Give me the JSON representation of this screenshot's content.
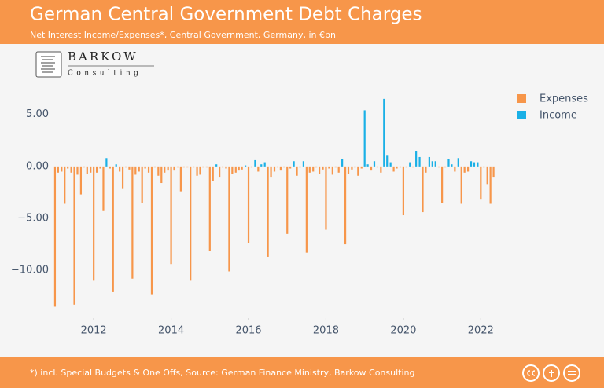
{
  "chart_data": {
    "type": "bar",
    "title": "German Central Government Debt Charges",
    "subtitle": "Net Interest Income/Expenses*, Central Government, Germany, in €bn",
    "logo": {
      "name": "BARKOW",
      "tagline": "Consulting"
    },
    "source": "*) incl. Special Budgets & One Offs, Source: German Finance Ministry, Barkow Consulting",
    "x": [
      2011.0,
      2011.08,
      2011.17,
      2011.25,
      2011.33,
      2011.42,
      2011.5,
      2011.58,
      2011.67,
      2011.75,
      2011.83,
      2011.92,
      2012.0,
      2012.08,
      2012.17,
      2012.25,
      2012.33,
      2012.42,
      2012.5,
      2012.58,
      2012.67,
      2012.75,
      2012.83,
      2012.92,
      2013.0,
      2013.08,
      2013.17,
      2013.25,
      2013.33,
      2013.42,
      2013.5,
      2013.58,
      2013.67,
      2013.75,
      2013.83,
      2013.92,
      2014.0,
      2014.08,
      2014.17,
      2014.25,
      2014.33,
      2014.42,
      2014.5,
      2014.58,
      2014.67,
      2014.75,
      2014.83,
      2014.92,
      2015.0,
      2015.08,
      2015.17,
      2015.25,
      2015.33,
      2015.42,
      2015.5,
      2015.58,
      2015.67,
      2015.75,
      2015.83,
      2015.92,
      2016.0,
      2016.08,
      2016.17,
      2016.25,
      2016.33,
      2016.42,
      2016.5,
      2016.58,
      2016.67,
      2016.75,
      2016.83,
      2016.92,
      2017.0,
      2017.08,
      2017.17,
      2017.25,
      2017.33,
      2017.42,
      2017.5,
      2017.58,
      2017.67,
      2017.75,
      2017.83,
      2017.92,
      2018.0,
      2018.08,
      2018.17,
      2018.25,
      2018.33,
      2018.42,
      2018.5,
      2018.58,
      2018.67,
      2018.75,
      2018.83,
      2018.92,
      2019.0,
      2019.08,
      2019.17,
      2019.25,
      2019.33,
      2019.42,
      2019.5,
      2019.58,
      2019.67,
      2019.75,
      2019.83,
      2019.92,
      2020.0,
      2020.08,
      2020.17,
      2020.25,
      2020.33,
      2020.42,
      2020.5,
      2020.58,
      2020.67,
      2020.75,
      2020.83,
      2020.92,
      2021.0,
      2021.08,
      2021.17,
      2021.25,
      2021.33,
      2021.42,
      2021.5,
      2021.58,
      2021.67,
      2021.75,
      2021.83,
      2021.92,
      2022.0,
      2022.08,
      2022.17,
      2022.25,
      2022.33
    ],
    "series": [
      {
        "name": "Expenses",
        "color": "#f7964a",
        "values": [
          -13.5,
          -0.6,
          -0.5,
          -3.6,
          -0.2,
          -0.6,
          -13.3,
          -0.8,
          -2.7,
          -0.1,
          -0.7,
          -0.6,
          -11.0,
          -0.6,
          -0.2,
          -4.3,
          null,
          -0.2,
          -12.1,
          null,
          -0.5,
          -2.1,
          -0.1,
          -0.3,
          -10.8,
          -0.8,
          -0.5,
          -3.5,
          -0.2,
          -0.6,
          -12.3,
          -0.1,
          -0.9,
          -1.6,
          -0.6,
          -0.4,
          -9.4,
          -0.4,
          -0.1,
          -2.4,
          -0.1,
          -0.1,
          -11.0,
          -0.1,
          -0.9,
          -0.8,
          -0.1,
          -0.1,
          -8.1,
          -1.4,
          null,
          -1.0,
          -0.1,
          -0.2,
          -10.1,
          -0.7,
          -0.6,
          -0.4,
          -0.3,
          null,
          -7.4,
          -0.1,
          null,
          -0.5,
          null,
          null,
          -8.7,
          -1.0,
          -0.5,
          -0.1,
          -0.4,
          -0.1,
          -6.5,
          -0.2,
          null,
          -0.9,
          -0.1,
          null,
          -8.3,
          -0.6,
          -0.5,
          -0.1,
          -0.7,
          -0.3,
          -6.1,
          -0.2,
          -0.8,
          -0.1,
          -0.6,
          null,
          -7.5,
          -0.7,
          -0.3,
          -0.1,
          -0.9,
          -0.2,
          null,
          null,
          -0.4,
          null,
          -0.1,
          -0.6,
          null,
          null,
          null,
          -0.5,
          -0.2,
          -0.1,
          -4.7,
          -0.1,
          null,
          -0.1,
          null,
          null,
          -4.4,
          -0.6,
          null,
          null,
          null,
          -0.1,
          -3.5,
          -0.1,
          null,
          null,
          -0.5,
          null,
          -3.6,
          -0.6,
          -0.5,
          null,
          null,
          null,
          -3.2,
          -0.1,
          -1.7,
          -3.6,
          -1.0
        ]
      },
      {
        "name": "Income",
        "color": "#1ab0e6",
        "values": [
          null,
          null,
          null,
          null,
          null,
          null,
          null,
          null,
          null,
          null,
          null,
          null,
          null,
          null,
          null,
          null,
          0.8,
          null,
          null,
          0.2,
          null,
          null,
          null,
          null,
          null,
          null,
          null,
          null,
          null,
          null,
          null,
          null,
          null,
          null,
          null,
          null,
          null,
          null,
          null,
          null,
          null,
          null,
          null,
          null,
          null,
          null,
          null,
          null,
          null,
          null,
          0.2,
          null,
          null,
          null,
          null,
          null,
          null,
          null,
          null,
          0.1,
          null,
          null,
          0.6,
          null,
          0.2,
          0.4,
          null,
          null,
          null,
          null,
          null,
          null,
          null,
          null,
          0.5,
          null,
          null,
          0.5,
          null,
          null,
          null,
          null,
          null,
          null,
          null,
          null,
          null,
          null,
          null,
          0.7,
          null,
          null,
          null,
          null,
          null,
          null,
          5.4,
          0.2,
          null,
          0.5,
          null,
          null,
          6.5,
          1.1,
          0.4,
          null,
          null,
          null,
          null,
          null,
          0.4,
          null,
          1.5,
          0.9,
          null,
          null,
          0.9,
          0.5,
          0.5,
          null,
          null,
          null,
          0.7,
          0.2,
          null,
          0.8,
          null,
          null,
          null,
          0.5,
          0.4,
          0.4,
          null,
          null,
          null,
          null,
          null
        ]
      }
    ],
    "xlim": [
      2010.92,
      2022.42
    ],
    "xticks": [
      2012,
      2014,
      2016,
      2018,
      2020,
      2022
    ],
    "ylim": [
      -14.6,
      7.7
    ],
    "yticks": [
      {
        "value": 5,
        "label": "5.00"
      },
      {
        "value": 0,
        "label": "0.00"
      },
      {
        "value": -5,
        "label": "−5.00"
      },
      {
        "value": -10,
        "label": "−10.00"
      }
    ],
    "legend": "right"
  }
}
